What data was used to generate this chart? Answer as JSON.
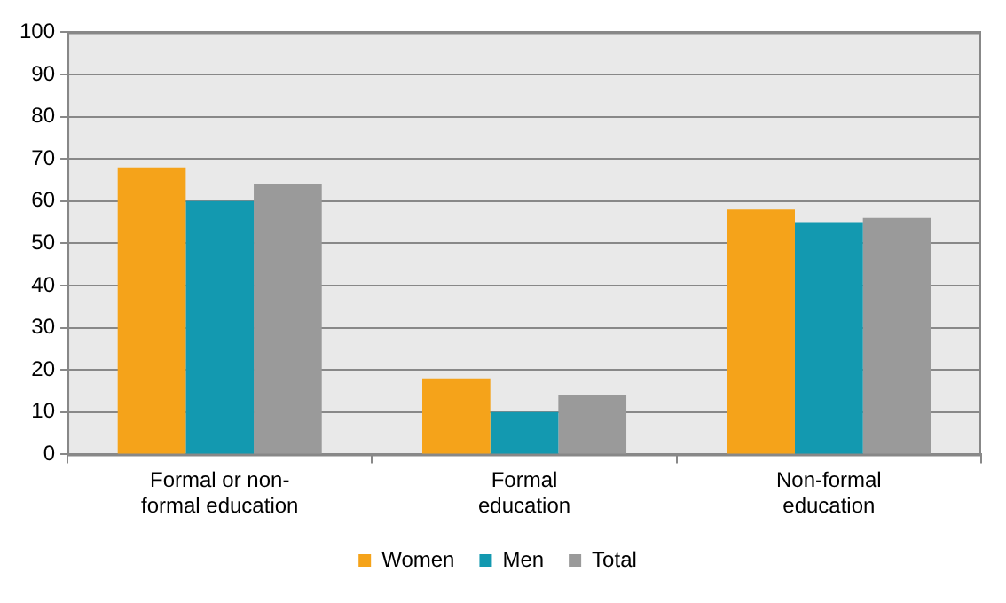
{
  "chart_data": {
    "type": "bar",
    "categories": [
      "Formal or non-formal education",
      "Formal education",
      "Non-formal education"
    ],
    "series": [
      {
        "name": "Women",
        "color": "#f5a31a",
        "values": [
          68,
          18,
          58
        ]
      },
      {
        "name": "Men",
        "color": "#1399b0",
        "values": [
          60,
          10,
          55
        ]
      },
      {
        "name": "Total",
        "color": "#9a9a9a",
        "values": [
          64,
          14,
          56
        ]
      }
    ],
    "ylim": [
      0,
      100
    ],
    "yticks": [
      0,
      10,
      20,
      30,
      40,
      50,
      60,
      70,
      80,
      90,
      100
    ],
    "grid": "y",
    "legend": "bottom"
  }
}
